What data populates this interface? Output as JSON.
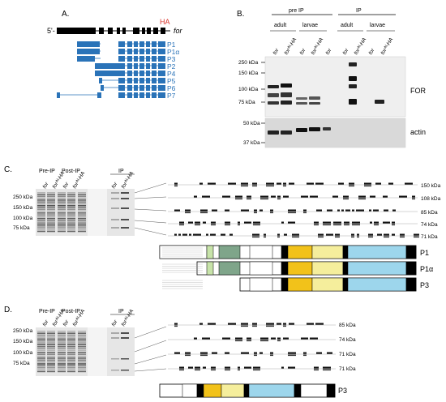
{
  "panels": {
    "A": {
      "label": "A.",
      "five_prime": "5'-",
      "gene_label": "for",
      "tag_label": "HA",
      "tag_color": "#d9342b",
      "isoform_color": "#2a73b8",
      "isoforms": [
        "P1",
        "P1α",
        "P3",
        "P2",
        "P4",
        "P5",
        "P6",
        "P7"
      ]
    },
    "B": {
      "label": "B.",
      "group_pre": "pre IP",
      "group_ip": "IP",
      "stage_adult": "adult",
      "stage_larvae": "larvae",
      "lanes": [
        "for",
        "forᴬᴵ-HA",
        "for",
        "forᴬᴵ-HA",
        "for",
        "for",
        "forᴬᴵ-HA",
        "for",
        "forᴬᴵ-HA"
      ],
      "top_markers": [
        "250 kDa",
        "150 kDa",
        "100 kDa",
        "75 kDa"
      ],
      "bottom_markers": [
        "50 kDa",
        "37 kDa"
      ],
      "blot_top_label": "FOR",
      "blot_bottom_label": "actin"
    },
    "C": {
      "label": "C.",
      "pre_ip": "Pre-IP",
      "post_ip": "Post-IP",
      "ip": "IP",
      "lanes": [
        "for",
        "forᴬᴵ-HA",
        "for",
        "forᴬᴵ-HA",
        "for",
        "forᴬᴵ-HA"
      ],
      "markers": [
        "250 kDa",
        "150 kDa",
        "100 kDa",
        "75 kDa"
      ],
      "band_sizes": [
        "150 kDa",
        "108 kDa",
        "85 kDa",
        "74 kDa",
        "71 kDa"
      ],
      "isoforms": [
        "P1",
        "P1α",
        "P3"
      ]
    },
    "D": {
      "label": "D.",
      "pre_ip": "Pre-IP",
      "post_ip": "Post-IP",
      "ip": "IP",
      "lanes": [
        "for",
        "forᴬᴵ-HA",
        "for",
        "forᴬᴵ-HA",
        "for",
        "forᴬᴵ-HA"
      ],
      "markers": [
        "250 kDa",
        "150 kDa",
        "100 kDa",
        "75 kDa"
      ],
      "band_sizes": [
        "85 kDa",
        "74 kDa",
        "71 kDa",
        "71 kDa"
      ],
      "isoform": "P3"
    }
  },
  "colors": {
    "yellow_dark": "#f2c21a",
    "yellow_light": "#f5ee9c",
    "cyan": "#9dd6ec",
    "green_light": "#c7e3a9",
    "green_dark": "#7fa58a"
  }
}
